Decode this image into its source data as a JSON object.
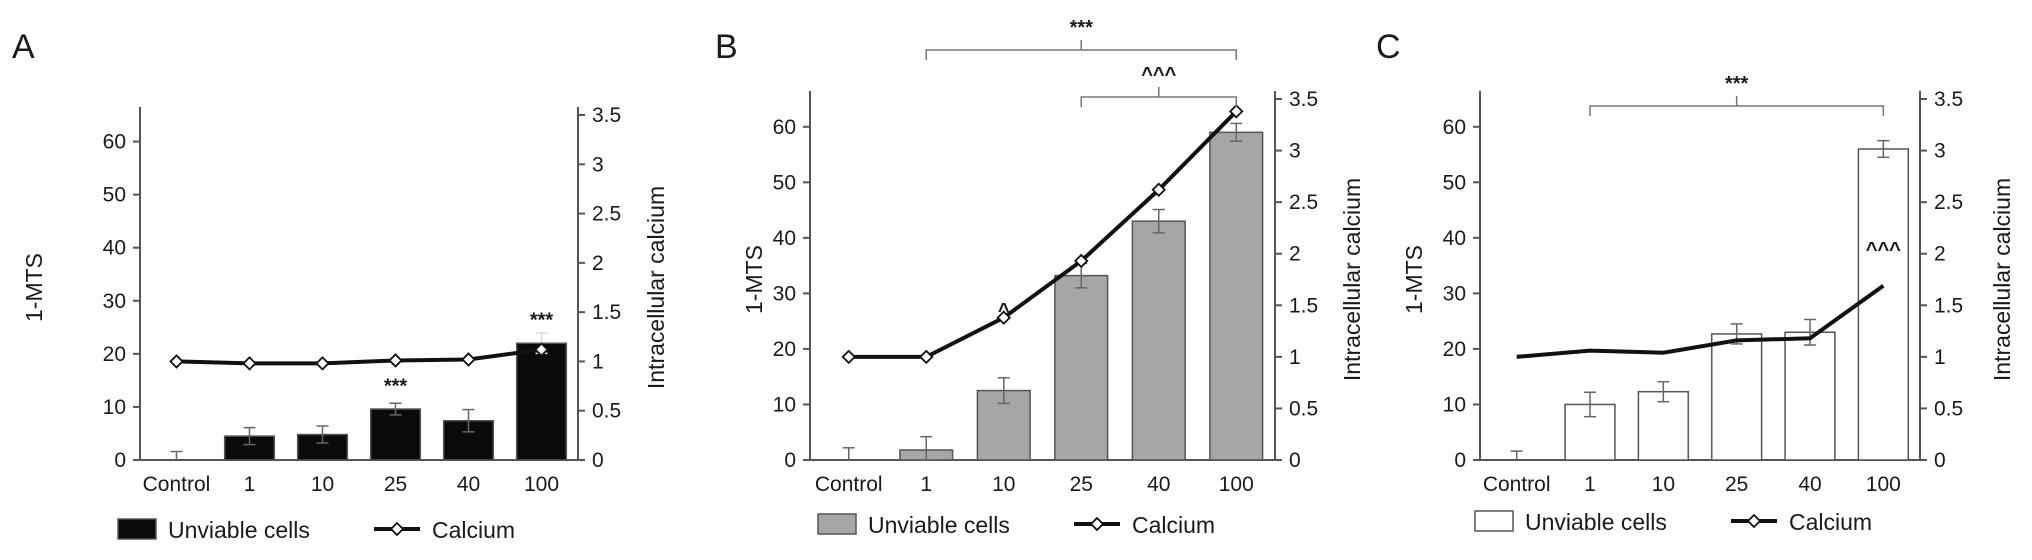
{
  "chart_data": [
    {
      "panel": "A",
      "type": "bar",
      "categories": [
        "Control",
        "1",
        "10",
        "25",
        "40",
        "100"
      ],
      "series": [
        {
          "name": "Unviable cells",
          "type": "bar",
          "axis": "left",
          "values": [
            0,
            4.5,
            4.8,
            9.6,
            7.4,
            22.0
          ],
          "errors": [
            1.6,
            1.6,
            1.6,
            1.1,
            2.1,
            1.9
          ],
          "color": "#0a0a0a"
        },
        {
          "name": "Calcium",
          "type": "line",
          "axis": "right",
          "values": [
            1.0,
            0.98,
            0.98,
            1.01,
            1.02,
            1.12
          ]
        }
      ],
      "ylabel": "1-MTS",
      "ylim": [
        0,
        65
      ],
      "yticks": [
        "0",
        "10",
        "20",
        "30",
        "40",
        "50",
        "60"
      ],
      "y2label": "Intracellular calcium",
      "y2lim": [
        0,
        3.5
      ],
      "y2ticks": [
        "0",
        "0.5",
        "1",
        "1.5",
        "2",
        "2.5",
        "3",
        "3.5"
      ],
      "annotations": [
        {
          "text": "***",
          "category": "25",
          "value": 14
        },
        {
          "text": "***",
          "category": "100",
          "value": 26.5
        }
      ],
      "brackets": [],
      "legend_position": "bottom"
    },
    {
      "panel": "B",
      "type": "bar",
      "categories": [
        "Control",
        "1",
        "10",
        "25",
        "40",
        "100"
      ],
      "series": [
        {
          "name": "Unviable cells",
          "type": "bar",
          "axis": "left",
          "values": [
            0,
            1.8,
            12.5,
            33.2,
            43.0,
            59.0
          ],
          "errors": [
            2.2,
            2.4,
            2.3,
            2.2,
            2.1,
            1.6
          ],
          "color": "#a6a6a6"
        },
        {
          "name": "Calcium",
          "type": "line",
          "axis": "right",
          "values": [
            1.0,
            1.0,
            1.38,
            1.93,
            2.62,
            3.38
          ]
        }
      ],
      "ylabel": "1-MTS",
      "ylim": [
        0,
        65
      ],
      "yticks": [
        "0",
        "10",
        "20",
        "30",
        "40",
        "50",
        "60"
      ],
      "y2label": "Intracellular calcium",
      "y2lim": [
        0,
        3.5
      ],
      "y2ticks": [
        "0",
        "0.5",
        "1",
        "1.5",
        "2",
        "2.5",
        "3",
        "3.5"
      ],
      "annotations": [
        {
          "text": "^",
          "category": "10",
          "value": 27
        }
      ],
      "brackets": [
        {
          "text": "***",
          "from": "1",
          "to": "100",
          "level": 0
        },
        {
          "text": "^^^",
          "from": "25",
          "to": "100",
          "level": 1
        }
      ],
      "legend_position": "bottom"
    },
    {
      "panel": "C",
      "type": "bar",
      "categories": [
        "Control",
        "1",
        "10",
        "25",
        "40",
        "100"
      ],
      "series": [
        {
          "name": "Unviable cells",
          "type": "bar",
          "axis": "left",
          "values": [
            0,
            10.0,
            12.3,
            22.7,
            23.0,
            56.0
          ],
          "errors": [
            1.6,
            2.2,
            1.8,
            1.8,
            2.3,
            1.5
          ],
          "color": "#ffffff"
        },
        {
          "name": "Calcium",
          "type": "line",
          "axis": "right",
          "values": [
            1.0,
            1.06,
            1.04,
            1.16,
            1.18,
            1.69
          ]
        }
      ],
      "ylabel": "1-MTS",
      "ylim": [
        0,
        65
      ],
      "yticks": [
        "0",
        "10",
        "20",
        "30",
        "40",
        "50",
        "60"
      ],
      "y2label": "Intracellular calcium",
      "y2lim": [
        0,
        3.5
      ],
      "y2ticks": [
        "0",
        "0.5",
        "1",
        "1.5",
        "2",
        "2.5",
        "3",
        "3.5"
      ],
      "annotations": [
        {
          "text": "^^^",
          "category": "100",
          "value": 38
        }
      ],
      "brackets": [
        {
          "text": "***",
          "from": "1",
          "to": "100",
          "level": 0
        }
      ],
      "legend_position": "bottom"
    }
  ]
}
